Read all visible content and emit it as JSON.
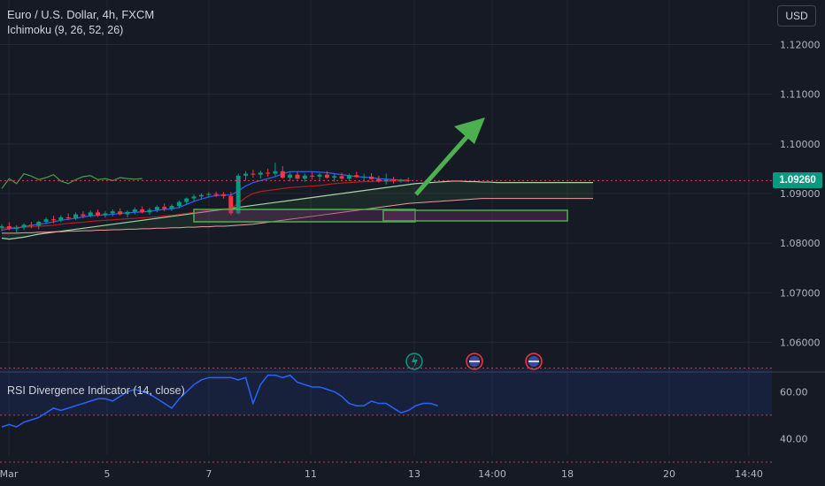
{
  "toolbar": {
    "currency": "USD"
  },
  "header": {
    "symbol_title": "Euro / U.S. Dollar, 4h, FXCM",
    "indicator": "Ichimoku (9, 26, 52, 26)"
  },
  "price": {
    "last": "1.09260",
    "last_value": 1.0926,
    "tag_color": "#089981"
  },
  "rsi_panel": {
    "title": "RSI Divergence Indicator (14, close)"
  },
  "colors": {
    "up": "#089981",
    "down": "#f23645",
    "tenkan": "#2962ff",
    "kijun": "#b71c1c",
    "chikou": "#43a047",
    "span_a": "#a5d6a7",
    "span_b": "#ef9a9a",
    "rsi": "#2962ff",
    "arrow": "#4caf50",
    "box": "#4caf50"
  },
  "icons": [
    "lightning-event-icon",
    "us-flag-event-icon",
    "us-flag-event-icon"
  ],
  "chart_data": [
    {
      "type": "candlestick",
      "title": "Euro / U.S. Dollar, 4h, FXCM",
      "ylim": [
        1.0542,
        1.129
      ],
      "y_ticks": [
        "1.12000",
        "1.11000",
        "1.10000",
        "1.09000",
        "1.08000",
        "1.07000",
        "1.06000"
      ],
      "y_tick_values": [
        1.12,
        1.11,
        1.1,
        1.09,
        1.08,
        1.07,
        1.06
      ],
      "x_ticks": [
        "Mar",
        "5",
        "7",
        "11",
        "13",
        "14:00",
        "18",
        "20",
        "14:40"
      ],
      "candles": [
        [
          1.0831,
          1.0838,
          1.0824,
          1.0834
        ],
        [
          1.0834,
          1.0842,
          1.0826,
          1.0829
        ],
        [
          1.0829,
          1.0836,
          1.0821,
          1.0832
        ],
        [
          1.0832,
          1.084,
          1.0826,
          1.0837
        ],
        [
          1.0837,
          1.0843,
          1.083,
          1.0835
        ],
        [
          1.0835,
          1.0845,
          1.0828,
          1.0843
        ],
        [
          1.0843,
          1.0852,
          1.0838,
          1.0848
        ],
        [
          1.0848,
          1.0855,
          1.084,
          1.0846
        ],
        [
          1.0846,
          1.0856,
          1.0842,
          1.0852
        ],
        [
          1.0852,
          1.086,
          1.0846,
          1.085
        ],
        [
          1.085,
          1.0862,
          1.0847,
          1.0858
        ],
        [
          1.0858,
          1.0864,
          1.085,
          1.0855
        ],
        [
          1.0855,
          1.0866,
          1.0852,
          1.0862
        ],
        [
          1.0862,
          1.0868,
          1.0853,
          1.0856
        ],
        [
          1.0856,
          1.0865,
          1.0851,
          1.086
        ],
        [
          1.086,
          1.0868,
          1.0854,
          1.0864
        ],
        [
          1.0864,
          1.087,
          1.0856,
          1.0858
        ],
        [
          1.0858,
          1.0866,
          1.0852,
          1.0863
        ],
        [
          1.0863,
          1.0872,
          1.0858,
          1.0868
        ],
        [
          1.0868,
          1.0874,
          1.086,
          1.0862
        ],
        [
          1.0862,
          1.0871,
          1.0857,
          1.0867
        ],
        [
          1.0867,
          1.0876,
          1.0862,
          1.0873
        ],
        [
          1.0873,
          1.088,
          1.0864,
          1.0869
        ],
        [
          1.0869,
          1.0878,
          1.0865,
          1.0875
        ],
        [
          1.0875,
          1.0886,
          1.087,
          1.0883
        ],
        [
          1.0883,
          1.0892,
          1.0877,
          1.089
        ],
        [
          1.089,
          1.0898,
          1.0884,
          1.0894
        ],
        [
          1.0894,
          1.09,
          1.0888,
          1.0897
        ],
        [
          1.0897,
          1.0903,
          1.0892,
          1.0899
        ],
        [
          1.0899,
          1.0904,
          1.0893,
          1.0898
        ],
        [
          1.0898,
          1.0903,
          1.089,
          1.0895
        ],
        [
          1.0895,
          1.0903,
          1.0856,
          1.086
        ],
        [
          1.086,
          1.094,
          1.0858,
          1.0936
        ],
        [
          1.0936,
          1.0945,
          1.0926,
          1.094
        ],
        [
          1.094,
          1.0948,
          1.0932,
          1.0938
        ],
        [
          1.0938,
          1.0946,
          1.093,
          1.0942
        ],
        [
          1.0942,
          1.095,
          1.0934,
          1.094
        ],
        [
          1.094,
          1.0962,
          1.0934,
          1.0945
        ],
        [
          1.0945,
          1.0955,
          1.093,
          1.0932
        ],
        [
          1.0932,
          1.0942,
          1.0925,
          1.0938
        ],
        [
          1.0938,
          1.0945,
          1.0928,
          1.093
        ],
        [
          1.093,
          1.094,
          1.0924,
          1.0936
        ],
        [
          1.0936,
          1.0944,
          1.0928,
          1.0934
        ],
        [
          1.0934,
          1.0941,
          1.0926,
          1.0938
        ],
        [
          1.0938,
          1.0945,
          1.093,
          1.0932
        ],
        [
          1.0932,
          1.094,
          1.0924,
          1.0935
        ],
        [
          1.0935,
          1.0942,
          1.0928,
          1.093
        ],
        [
          1.093,
          1.094,
          1.0925,
          1.0937
        ],
        [
          1.0937,
          1.0944,
          1.0932,
          1.0933
        ],
        [
          1.0933,
          1.094,
          1.0926,
          1.0934
        ],
        [
          1.0934,
          1.0941,
          1.0928,
          1.0929
        ],
        [
          1.0929,
          1.0936,
          1.0922,
          1.0924
        ],
        [
          1.0924,
          1.094,
          1.0918,
          1.0928
        ],
        [
          1.0928,
          1.0934,
          1.092,
          1.0926
        ],
        [
          1.0926,
          1.093,
          1.0922,
          1.0927
        ],
        [
          1.0927,
          1.0932,
          1.0923,
          1.0926
        ]
      ],
      "tenkan": [
        1.0826,
        1.0829,
        1.083,
        1.0833,
        1.0836,
        1.0838,
        1.084,
        1.0843,
        1.0846,
        1.0848,
        1.085,
        1.0853,
        1.0855,
        1.0856,
        1.0857,
        1.0858,
        1.086,
        1.0861,
        1.0862,
        1.0863,
        1.0864,
        1.0866,
        1.0868,
        1.0869,
        1.0872,
        1.0878,
        1.0884,
        1.0889,
        1.0893,
        1.0896,
        1.0897,
        1.0897,
        1.0905,
        1.0915,
        1.0922,
        1.0926,
        1.093,
        1.0934,
        1.094,
        1.0944,
        1.0944,
        1.0944,
        1.0944,
        1.0943,
        1.0942,
        1.094,
        1.0938,
        1.0936,
        1.0934,
        1.0933,
        1.0932,
        1.093,
        1.0929,
        1.0928,
        1.0927,
        1.0927
      ],
      "kijun": [
        1.083,
        1.0831,
        1.0832,
        1.0832,
        1.0833,
        1.0834,
        1.0835,
        1.0836,
        1.0838,
        1.084,
        1.0841,
        1.0842,
        1.0844,
        1.0845,
        1.0846,
        1.0847,
        1.0848,
        1.0849,
        1.085,
        1.0851,
        1.0852,
        1.0853,
        1.0855,
        1.0856,
        1.0858,
        1.086,
        1.0862,
        1.0864,
        1.0866,
        1.0868,
        1.0869,
        1.087,
        1.088,
        1.0892,
        1.09,
        1.0904,
        1.0906,
        1.0908,
        1.091,
        1.0912,
        1.0913,
        1.0914,
        1.0915,
        1.0916,
        1.0918,
        1.092,
        1.0921,
        1.0922,
        1.0923,
        1.0924,
        1.0924,
        1.0925,
        1.0925,
        1.0925,
        1.0925,
        1.0925
      ],
      "chikou": [
        1.091,
        1.093,
        1.092,
        1.094,
        1.0935,
        1.0928,
        1.0932,
        1.0938,
        1.0925,
        1.092,
        1.0928,
        1.0934,
        1.0936,
        1.0928,
        1.093,
        1.0926,
        1.0932,
        1.093,
        1.0929,
        1.093
      ],
      "span_a": [
        1.081,
        1.0808,
        1.081,
        1.0812,
        1.0815,
        1.0818,
        1.082,
        1.0822,
        1.0824,
        1.0826,
        1.0828,
        1.083,
        1.0832,
        1.0834,
        1.0836,
        1.0838,
        1.084,
        1.0842,
        1.0844,
        1.0846,
        1.0848,
        1.085,
        1.0852,
        1.0854,
        1.0856,
        1.0858,
        1.086,
        1.0862,
        1.0864,
        1.0866,
        1.0868,
        1.087,
        1.0872,
        1.0874,
        1.0876,
        1.0878,
        1.088,
        1.0882,
        1.0884,
        1.0886,
        1.0888,
        1.089,
        1.0892,
        1.0894,
        1.0896,
        1.0898,
        1.09,
        1.0902,
        1.0904,
        1.0906,
        1.0908,
        1.091,
        1.0912,
        1.0914,
        1.0916,
        1.0918,
        1.092,
        1.0921,
        1.0922,
        1.0923,
        1.0924,
        1.0925,
        1.0925,
        1.0924,
        1.0924,
        1.0923,
        1.0923,
        1.0922,
        1.0922,
        1.0922,
        1.0922,
        1.0922,
        1.0922,
        1.0922,
        1.0922,
        1.0922,
        1.0922,
        1.0922,
        1.0922,
        1.0922,
        1.0922
      ],
      "span_b": [
        1.082,
        1.082,
        1.082,
        1.0821,
        1.0821,
        1.0822,
        1.0822,
        1.0823,
        1.0823,
        1.0824,
        1.0824,
        1.0825,
        1.0825,
        1.0826,
        1.0826,
        1.0827,
        1.0827,
        1.0828,
        1.0828,
        1.0829,
        1.0829,
        1.083,
        1.083,
        1.0831,
        1.0831,
        1.0832,
        1.0832,
        1.0833,
        1.0833,
        1.0834,
        1.0834,
        1.0835,
        1.0836,
        1.0837,
        1.0838,
        1.084,
        1.0842,
        1.0844,
        1.0846,
        1.0848,
        1.085,
        1.0852,
        1.0854,
        1.0856,
        1.0858,
        1.086,
        1.0862,
        1.0864,
        1.0866,
        1.0868,
        1.087,
        1.0872,
        1.0874,
        1.0876,
        1.0878,
        1.088,
        1.0881,
        1.0882,
        1.0883,
        1.0884,
        1.0885,
        1.0886,
        1.0887,
        1.0888,
        1.0889,
        1.089,
        1.089,
        1.089,
        1.089,
        1.089,
        1.089,
        1.089,
        1.089,
        1.089,
        1.089,
        1.089,
        1.089,
        1.089,
        1.089,
        1.089,
        1.089
      ]
    },
    {
      "type": "line",
      "title": "RSI Divergence Indicator (14, close)",
      "ylim": [
        33.0,
        68.0
      ],
      "y_ticks": [
        "60.00",
        "40.00"
      ],
      "y_tick_values": [
        60,
        40
      ],
      "band": [
        50,
        70
      ],
      "values": [
        45,
        46,
        45,
        47,
        48,
        49,
        51,
        53,
        52,
        53,
        54,
        55,
        56,
        57,
        57,
        56,
        58,
        60,
        61,
        60,
        59,
        57,
        55,
        53,
        57,
        60,
        63,
        65,
        66,
        66,
        66,
        66,
        65,
        66,
        55,
        63,
        67,
        67,
        66,
        67,
        64,
        63,
        62,
        62,
        61,
        60,
        58,
        55,
        54,
        54,
        56,
        55,
        55,
        53,
        51,
        52,
        54,
        55,
        55,
        54
      ]
    }
  ]
}
